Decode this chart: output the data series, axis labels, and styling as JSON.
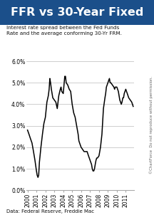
{
  "title": "FFR vs 30-Year Fixed",
  "subtitle": "Interest rate spread between the Fed Funds\nRate and the average conforming 30-Yr FRM.",
  "footer": "Data: Federal Reserve, Freddie Mac",
  "watermark": "©ChartForce  Do not reproduce without permission.",
  "title_bg_color": "#1b4f8a",
  "title_text_color": "#ffffff",
  "plot_bg_color": "#ffffff",
  "outer_bg_color": "#dce6f0",
  "line_color": "#000000",
  "grid_color": "#bbbbbb",
  "ylim": [
    0.0,
    0.06
  ],
  "yticks": [
    0.0,
    0.01,
    0.02,
    0.03,
    0.04,
    0.05,
    0.06
  ],
  "ytick_labels": [
    "0.0%",
    "1.0%",
    "2.0%",
    "3.0%",
    "4.0%",
    "5.0%",
    "6.0%"
  ],
  "xtick_labels": [
    "2000",
    "2001",
    "2002",
    "2003",
    "2004",
    "2005",
    "2006",
    "2007",
    "2008",
    "2009",
    "2010",
    "2011"
  ],
  "series": [
    [
      2000.0,
      0.028
    ],
    [
      2000.17,
      0.026
    ],
    [
      2000.33,
      0.024
    ],
    [
      2000.5,
      0.022
    ],
    [
      2000.67,
      0.018
    ],
    [
      2000.83,
      0.014
    ],
    [
      2001.0,
      0.009
    ],
    [
      2001.08,
      0.007
    ],
    [
      2001.17,
      0.006
    ],
    [
      2001.25,
      0.007
    ],
    [
      2001.33,
      0.013
    ],
    [
      2001.5,
      0.02
    ],
    [
      2001.67,
      0.026
    ],
    [
      2001.83,
      0.031
    ],
    [
      2002.0,
      0.034
    ],
    [
      2002.17,
      0.041
    ],
    [
      2002.33,
      0.044
    ],
    [
      2002.42,
      0.047
    ],
    [
      2002.5,
      0.052
    ],
    [
      2002.58,
      0.05
    ],
    [
      2002.67,
      0.047
    ],
    [
      2002.83,
      0.043
    ],
    [
      2003.0,
      0.042
    ],
    [
      2003.17,
      0.041
    ],
    [
      2003.33,
      0.038
    ],
    [
      2003.5,
      0.044
    ],
    [
      2003.67,
      0.047
    ],
    [
      2003.75,
      0.048
    ],
    [
      2003.83,
      0.046
    ],
    [
      2004.0,
      0.045
    ],
    [
      2004.17,
      0.053
    ],
    [
      2004.25,
      0.053
    ],
    [
      2004.33,
      0.05
    ],
    [
      2004.5,
      0.049
    ],
    [
      2004.67,
      0.047
    ],
    [
      2004.83,
      0.046
    ],
    [
      2005.0,
      0.04
    ],
    [
      2005.17,
      0.036
    ],
    [
      2005.33,
      0.034
    ],
    [
      2005.5,
      0.03
    ],
    [
      2005.67,
      0.026
    ],
    [
      2005.75,
      0.023
    ],
    [
      2005.83,
      0.022
    ],
    [
      2006.0,
      0.02
    ],
    [
      2006.17,
      0.019
    ],
    [
      2006.33,
      0.018
    ],
    [
      2006.5,
      0.018
    ],
    [
      2006.67,
      0.018
    ],
    [
      2006.83,
      0.016
    ],
    [
      2007.0,
      0.014
    ],
    [
      2007.17,
      0.012
    ],
    [
      2007.25,
      0.01
    ],
    [
      2007.33,
      0.009
    ],
    [
      2007.42,
      0.009
    ],
    [
      2007.5,
      0.01
    ],
    [
      2007.58,
      0.012
    ],
    [
      2007.67,
      0.014
    ],
    [
      2007.75,
      0.015
    ],
    [
      2007.83,
      0.015
    ],
    [
      2008.0,
      0.016
    ],
    [
      2008.17,
      0.02
    ],
    [
      2008.33,
      0.026
    ],
    [
      2008.5,
      0.038
    ],
    [
      2008.67,
      0.043
    ],
    [
      2008.75,
      0.045
    ],
    [
      2008.83,
      0.048
    ],
    [
      2009.0,
      0.05
    ],
    [
      2009.08,
      0.051
    ],
    [
      2009.17,
      0.052
    ],
    [
      2009.25,
      0.05
    ],
    [
      2009.33,
      0.05
    ],
    [
      2009.5,
      0.049
    ],
    [
      2009.67,
      0.048
    ],
    [
      2009.75,
      0.047
    ],
    [
      2009.83,
      0.048
    ],
    [
      2010.0,
      0.048
    ],
    [
      2010.17,
      0.046
    ],
    [
      2010.25,
      0.044
    ],
    [
      2010.33,
      0.042
    ],
    [
      2010.5,
      0.04
    ],
    [
      2010.58,
      0.041
    ],
    [
      2010.67,
      0.043
    ],
    [
      2010.75,
      0.043
    ],
    [
      2010.83,
      0.045
    ],
    [
      2011.0,
      0.047
    ],
    [
      2011.08,
      0.046
    ],
    [
      2011.17,
      0.045
    ],
    [
      2011.25,
      0.044
    ],
    [
      2011.33,
      0.043
    ],
    [
      2011.5,
      0.042
    ],
    [
      2011.67,
      0.041
    ],
    [
      2011.75,
      0.04
    ],
    [
      2011.83,
      0.039
    ]
  ]
}
